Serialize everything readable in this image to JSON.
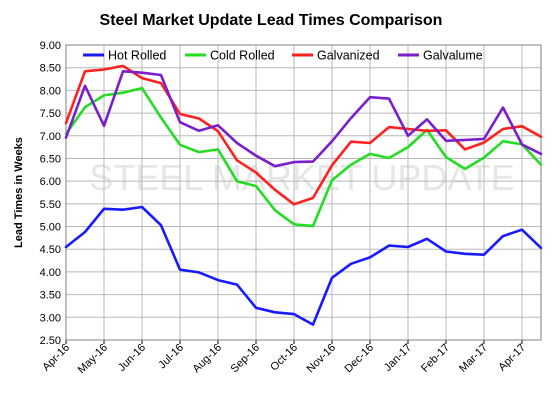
{
  "chart_data": {
    "type": "line",
    "title": "Steel Market Update Lead Times Comparison",
    "ylabel": "Lead Times in Weeks",
    "watermark": "STEEL MARKET UPDATE",
    "ylim": [
      2.5,
      9.0
    ],
    "yticks": [
      "9.00",
      "8.50",
      "8.00",
      "7.50",
      "7.00",
      "6.50",
      "6.00",
      "5.50",
      "5.00",
      "4.50",
      "4.00",
      "3.50",
      "3.00",
      "2.50"
    ],
    "xticks": [
      {
        "label": "Apr-16",
        "index": 0
      },
      {
        "label": "May-16",
        "index": 2
      },
      {
        "label": "Jun-16",
        "index": 4
      },
      {
        "label": "Jul-16",
        "index": 6
      },
      {
        "label": "Aug-16",
        "index": 8
      },
      {
        "label": "Sep-16",
        "index": 10
      },
      {
        "label": "Oct-16",
        "index": 12
      },
      {
        "label": "Nov-16",
        "index": 14
      },
      {
        "label": "Dec-16",
        "index": 16
      },
      {
        "label": "Jan-17",
        "index": 18
      },
      {
        "label": "Feb-17",
        "index": 20
      },
      {
        "label": "Mar-17",
        "index": 22
      },
      {
        "label": "Apr-17",
        "index": 24
      }
    ],
    "grid": true,
    "legend": "top",
    "series": [
      {
        "name": "Hot Rolled",
        "color": "#1a1aff",
        "values": [
          4.55,
          4.88,
          5.39,
          5.37,
          5.43,
          5.03,
          4.05,
          3.99,
          3.82,
          3.72,
          3.21,
          3.11,
          3.07,
          2.84,
          3.87,
          4.18,
          4.32,
          4.58,
          4.55,
          4.73,
          4.45,
          4.4,
          4.38,
          4.79,
          4.93,
          4.53
        ]
      },
      {
        "name": "Cold Rolled",
        "color": "#22dd22",
        "values": [
          7.04,
          7.63,
          7.89,
          7.95,
          8.05,
          7.4,
          6.8,
          6.64,
          6.7,
          6.0,
          5.89,
          5.36,
          5.05,
          5.01,
          6.02,
          6.36,
          6.6,
          6.51,
          6.75,
          7.13,
          6.53,
          6.27,
          6.52,
          6.88,
          6.81,
          6.36
        ]
      },
      {
        "name": "Galvanized",
        "color": "#ff2020",
        "values": [
          7.28,
          8.42,
          8.46,
          8.54,
          8.27,
          8.16,
          7.48,
          7.38,
          7.1,
          6.46,
          6.19,
          5.81,
          5.49,
          5.63,
          6.35,
          6.87,
          6.84,
          7.19,
          7.15,
          7.11,
          7.12,
          6.7,
          6.85,
          7.15,
          7.21,
          6.98
        ]
      },
      {
        "name": "Galvalume",
        "color": "#7a1fcc",
        "values": [
          6.96,
          8.1,
          7.22,
          8.42,
          8.39,
          8.34,
          7.3,
          7.11,
          7.23,
          6.84,
          6.56,
          6.33,
          6.42,
          6.43,
          6.88,
          7.39,
          7.85,
          7.82,
          7.0,
          7.36,
          6.89,
          6.91,
          6.93,
          7.62,
          6.81,
          6.6
        ]
      }
    ]
  }
}
